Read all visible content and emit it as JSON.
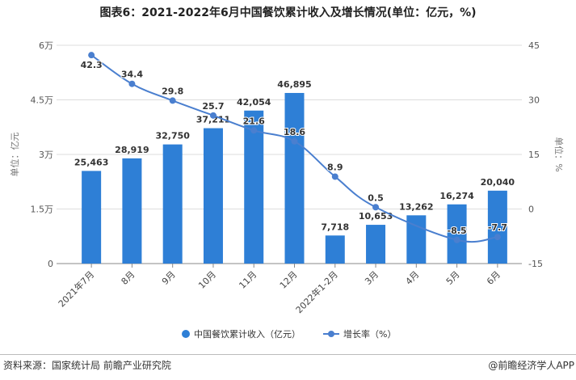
{
  "chart_data": {
    "type": "bar+line",
    "title": "图表6：2021-2022年6月中国餐饮累计收入及增长情况(单位：亿元，%)",
    "categories": [
      "2021年7月",
      "8月",
      "9月",
      "10月",
      "11月",
      "12月",
      "2022年1-2月",
      "3月",
      "4月",
      "5月",
      "6月"
    ],
    "series": [
      {
        "name": "中国餐饮累计收入（亿元）",
        "type": "bar",
        "axis": "left",
        "color": "#2e7fd6",
        "values": [
          25463,
          28919,
          32750,
          37211,
          42054,
          46895,
          7718,
          10653,
          13262,
          16274,
          20040
        ],
        "labels": [
          "25,463",
          "28,919",
          "32,750",
          "37,211",
          "42,054",
          "46,895",
          "7,718",
          "10,653",
          "13,262",
          "16,274",
          "20,040"
        ]
      },
      {
        "name": "增长率（%）",
        "type": "line",
        "axis": "right",
        "color": "#4a7fcf",
        "values": [
          42.3,
          34.4,
          29.8,
          25.7,
          21.6,
          18.6,
          8.9,
          0.5,
          null,
          -8.5,
          -7.7
        ],
        "labels": [
          "42.3",
          "34.4",
          "29.8",
          "25.7",
          "21.6",
          "18.6",
          "8.9",
          "0.5",
          "",
          "-8.5",
          "-7.7"
        ]
      }
    ],
    "left_axis": {
      "label": "单位：亿元",
      "range": [
        0,
        60000
      ],
      "ticks": [
        "0",
        "1.5万",
        "3万",
        "4.5万",
        "6万"
      ]
    },
    "right_axis": {
      "label": "单位：%",
      "range": [
        -15,
        45
      ],
      "ticks": [
        "-15",
        "0",
        "15",
        "30",
        "45"
      ]
    },
    "grid": true,
    "legend_position": "bottom"
  },
  "footer": {
    "source": "资料来源：国家统计局 前瞻产业研究院",
    "brand": "@前瞻经济学人APP"
  }
}
